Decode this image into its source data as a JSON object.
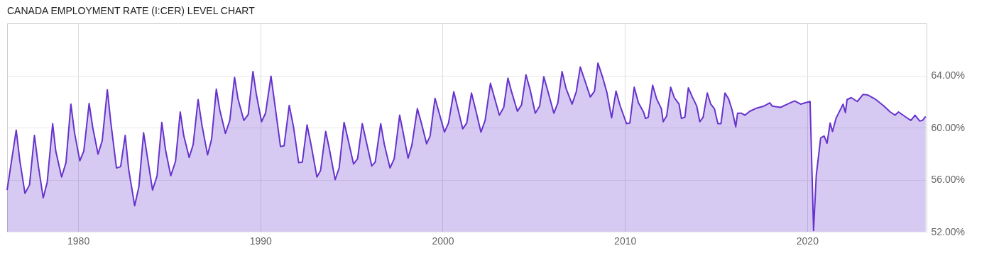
{
  "chart_data": {
    "type": "area",
    "title": "CANADA EMPLOYMENT RATE (I:CER) LEVEL CHART",
    "xlim": [
      1976.1,
      2026.55
    ],
    "xticks": [
      1980,
      1990,
      2000,
      2010,
      2020
    ],
    "ylim": [
      52,
      68
    ],
    "yticks": [
      {
        "value": 52,
        "label": "52.00%"
      },
      {
        "value": 56,
        "label": "56.00%"
      },
      {
        "value": 60,
        "label": "60.00%"
      },
      {
        "value": 64,
        "label": "64.00%"
      }
    ],
    "grid": true,
    "series": [
      {
        "color": "#6633cc",
        "x": [
          1976.1,
          1976.6,
          1976.8,
          1977.08,
          1977.33,
          1977.6,
          1977.8,
          1978.08,
          1978.3,
          1978.6,
          1978.77,
          1979.09,
          1979.33,
          1979.6,
          1979.8,
          1980.09,
          1980.31,
          1980.6,
          1980.8,
          1981.09,
          1981.32,
          1981.6,
          1981.79,
          1982.1,
          1982.33,
          1982.58,
          1982.77,
          1983.1,
          1983.33,
          1983.59,
          1983.78,
          1984.08,
          1984.33,
          1984.59,
          1984.79,
          1985.08,
          1985.34,
          1985.6,
          1985.79,
          1986.09,
          1986.31,
          1986.58,
          1986.79,
          1987.1,
          1987.32,
          1987.58,
          1987.77,
          1988.08,
          1988.32,
          1988.58,
          1988.77,
          1989.09,
          1989.33,
          1989.59,
          1989.77,
          1990.06,
          1990.28,
          1990.58,
          1990.78,
          1991.1,
          1991.3,
          1991.58,
          1991.81,
          1992.1,
          1992.3,
          1992.56,
          1992.79,
          1993.1,
          1993.3,
          1993.58,
          1993.77,
          1994.1,
          1994.32,
          1994.59,
          1994.79,
          1995.11,
          1995.33,
          1995.59,
          1995.78,
          1996.11,
          1996.3,
          1996.6,
          1996.8,
          1997.11,
          1997.34,
          1997.64,
          1997.82,
          1998.1,
          1998.31,
          1998.61,
          1998.83,
          1999.12,
          1999.31,
          1999.58,
          1999.81,
          2000.1,
          2000.32,
          2000.61,
          2000.8,
          2001.1,
          2001.32,
          2001.58,
          2001.82,
          2002.1,
          2002.33,
          2002.62,
          2002.83,
          2003.11,
          2003.35,
          2003.58,
          2003.79,
          2004.1,
          2004.33,
          2004.57,
          2004.8,
          2005.08,
          2005.32,
          2005.55,
          2005.77,
          2006.1,
          2006.32,
          2006.55,
          2006.77,
          2007.1,
          2007.33,
          2007.55,
          2007.78,
          2008.1,
          2008.33,
          2008.52,
          2008.79,
          2009.01,
          2009.27,
          2009.51,
          2009.73,
          2010.09,
          2010.27,
          2010.51,
          2010.74,
          2011.02,
          2011.13,
          2011.28,
          2011.52,
          2011.74,
          2012.0,
          2012.1,
          2012.29,
          2012.51,
          2012.71,
          2012.97,
          2013.1,
          2013.29,
          2013.48,
          2013.7,
          2013.94,
          2014.11,
          2014.29,
          2014.52,
          2014.71,
          2014.91,
          2015.1,
          2015.27,
          2015.49,
          2015.69,
          2015.88,
          2016.08,
          2016.18,
          2016.4,
          2016.59,
          2016.85,
          2017.24,
          2017.63,
          2017.95,
          2018.08,
          2018.54,
          2018.92,
          2019.31,
          2019.64,
          2019.9,
          2020.16,
          2020.35,
          2020.5,
          2020.74,
          2020.93,
          2021.09,
          2021.26,
          2021.39,
          2021.58,
          2021.97,
          2022.1,
          2022.19,
          2022.42,
          2022.75,
          2023.07,
          2023.33,
          2023.72,
          2024.17,
          2024.56,
          2024.82,
          2025.01,
          2025.47,
          2025.69,
          2025.92,
          2026.18,
          2026.33,
          2026.5
        ],
        "values": [
          55.2,
          59.8,
          57.45,
          54.95,
          55.6,
          59.4,
          57.2,
          54.6,
          55.8,
          60.3,
          58.2,
          56.2,
          57.3,
          61.8,
          59.6,
          57.45,
          58.2,
          61.85,
          60.0,
          57.96,
          59.0,
          62.9,
          60.4,
          56.9,
          57.0,
          59.4,
          56.8,
          54.0,
          55.45,
          59.6,
          57.9,
          55.2,
          56.3,
          60.4,
          58.3,
          56.3,
          57.4,
          61.2,
          59.4,
          57.7,
          58.7,
          62.15,
          60.2,
          57.9,
          59.1,
          62.95,
          61.35,
          59.55,
          60.55,
          63.85,
          62.2,
          60.55,
          61.0,
          64.3,
          62.6,
          60.45,
          61.1,
          63.95,
          61.9,
          58.55,
          58.6,
          61.7,
          60.1,
          57.3,
          57.35,
          60.2,
          58.6,
          56.2,
          56.7,
          59.7,
          58.45,
          56.0,
          56.9,
          60.4,
          59.2,
          57.2,
          57.6,
          60.3,
          59.1,
          57.05,
          57.35,
          60.3,
          58.7,
          56.9,
          57.6,
          60.95,
          59.7,
          57.65,
          58.65,
          61.45,
          60.35,
          58.75,
          59.35,
          62.25,
          61.1,
          59.65,
          60.35,
          62.75,
          61.65,
          59.9,
          60.35,
          62.65,
          61.3,
          59.65,
          60.55,
          63.4,
          62.35,
          60.95,
          61.55,
          63.8,
          62.7,
          61.25,
          61.75,
          64.05,
          62.9,
          61.1,
          61.65,
          63.9,
          62.8,
          61.1,
          61.9,
          64.3,
          63.0,
          61.8,
          62.75,
          64.65,
          63.7,
          62.35,
          62.8,
          64.95,
          63.8,
          62.7,
          60.75,
          62.8,
          61.7,
          60.3,
          60.35,
          63.1,
          61.9,
          61.2,
          60.7,
          60.8,
          63.25,
          62.2,
          61.45,
          60.45,
          60.9,
          63.1,
          62.3,
          61.8,
          60.7,
          60.8,
          63.05,
          62.35,
          61.65,
          60.45,
          60.8,
          62.65,
          61.8,
          61.45,
          60.3,
          60.3,
          62.65,
          62.2,
          61.35,
          60.05,
          61.1,
          61.1,
          60.95,
          61.25,
          61.5,
          61.65,
          61.9,
          61.65,
          61.55,
          61.8,
          62.05,
          61.8,
          61.9,
          62.0,
          52.1,
          56.35,
          59.2,
          59.35,
          58.8,
          60.35,
          59.7,
          60.7,
          61.8,
          61.15,
          62.15,
          62.3,
          62.0,
          62.55,
          62.5,
          62.2,
          61.7,
          61.2,
          60.95,
          61.2,
          60.75,
          60.55,
          60.95,
          60.5,
          60.55,
          60.85
        ]
      }
    ]
  }
}
